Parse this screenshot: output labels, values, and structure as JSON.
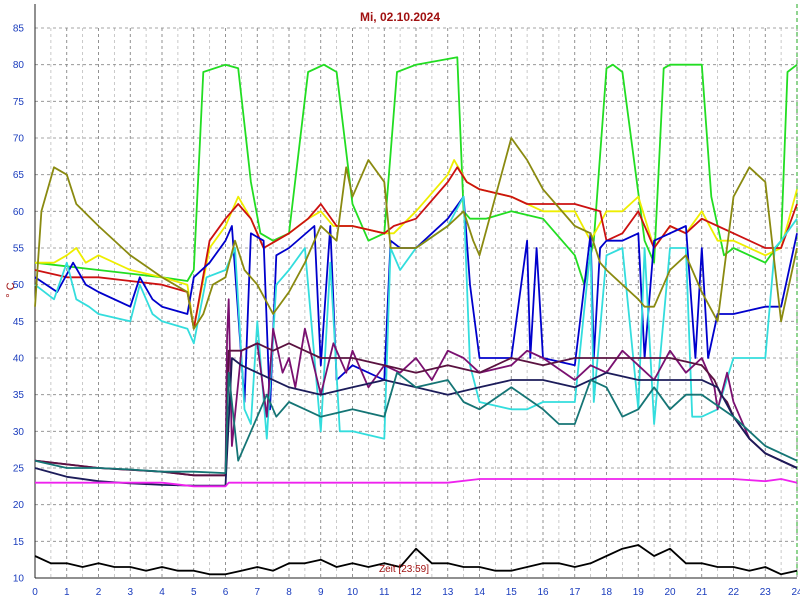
{
  "chart_data": {
    "type": "line",
    "title": "Mi, 02.10.2024",
    "ylabel": "° C",
    "time_note": "Zeit [23:59]",
    "xlim": [
      0,
      24
    ],
    "ylim": [
      10,
      85
    ],
    "x_ticks": [
      "0",
      "1",
      "2",
      "3",
      "4",
      "5",
      "6",
      "7",
      "8",
      "9",
      "10",
      "11",
      "12",
      "13",
      "14",
      "15",
      "16",
      "17",
      "18",
      "19",
      "20",
      "21",
      "22",
      "23",
      "24"
    ],
    "y_ticks": [
      "10",
      "15",
      "20",
      "25",
      "30",
      "35",
      "40",
      "45",
      "50",
      "55",
      "60",
      "65",
      "70",
      "75",
      "80",
      "85"
    ],
    "grid": true,
    "series": [
      {
        "color": "#22dd22",
        "x": [
          0,
          2,
          4,
          4.8,
          5,
          5.3,
          6,
          6.4,
          6.8,
          7.1,
          7.5,
          8,
          8.6,
          9.1,
          9.5,
          10,
          10.5,
          11,
          11.4,
          12,
          13.3,
          13.5,
          13.7,
          14.2,
          15,
          16,
          17,
          17.3,
          17.6,
          18,
          18.2,
          18.5,
          19.2,
          19.5,
          19.8,
          20,
          21,
          21.3,
          21.7,
          22,
          22.5,
          23,
          23.5,
          23.7,
          24
        ],
        "y": [
          53,
          52,
          51,
          50.5,
          52,
          79,
          80,
          79.5,
          64,
          57,
          56,
          57,
          79,
          80,
          79,
          61,
          56,
          57,
          79,
          80,
          81,
          60,
          59,
          59,
          60,
          59,
          54,
          50,
          56,
          79.5,
          80,
          79,
          56,
          53,
          79.5,
          80,
          80,
          62,
          54,
          55,
          54,
          53,
          56,
          79,
          80
        ]
      },
      {
        "color": "#eeee00",
        "x": [
          0,
          0.6,
          1,
          1.3,
          1.6,
          2,
          3,
          4,
          4.8,
          5,
          5.5,
          6,
          6.4,
          6.8,
          7.2,
          7.6,
          8,
          8.6,
          9,
          9.4,
          10,
          11,
          11.3,
          12,
          13,
          13.2,
          13.6,
          14,
          15,
          16,
          17,
          17.5,
          18,
          18.5,
          19,
          19.5,
          20,
          20.5,
          21,
          21.5,
          22,
          23,
          23.5,
          24
        ],
        "y": [
          53,
          53,
          54,
          55,
          53,
          54,
          52,
          51,
          50,
          44,
          55,
          58,
          62,
          59,
          55,
          56,
          57,
          59,
          60,
          58,
          58,
          57,
          57,
          60,
          65,
          67,
          64,
          63,
          62,
          60,
          60,
          56,
          60,
          60,
          62,
          55,
          58,
          57,
          60,
          56,
          56,
          54,
          55,
          63
        ]
      },
      {
        "color": "#cc1111",
        "x": [
          0,
          1,
          2,
          3,
          4,
          4.8,
          5,
          5.5,
          6,
          6.4,
          6.8,
          7.2,
          7.6,
          8,
          8.6,
          9,
          9.5,
          10,
          11,
          11.3,
          12,
          13,
          13.3,
          13.6,
          14,
          15,
          15.5,
          16,
          17,
          17.8,
          18,
          18.5,
          19,
          19.5,
          20,
          20.5,
          21,
          21.5,
          22,
          23,
          23.5,
          24
        ],
        "y": [
          52,
          51,
          51,
          50.5,
          50,
          49,
          44,
          56,
          59,
          61,
          59,
          55,
          56,
          57,
          59,
          61,
          58,
          58,
          57,
          58,
          59,
          64,
          66,
          64,
          63,
          62,
          61,
          61,
          61,
          60,
          56,
          57,
          60,
          55,
          58,
          57,
          59,
          58,
          57,
          55,
          55,
          61
        ]
      },
      {
        "color": "#0000cc",
        "x": [
          0,
          0.7,
          1.2,
          1.6,
          2,
          3,
          3.3,
          3.7,
          4,
          4.8,
          5,
          5.5,
          6,
          6.2,
          6.6,
          6.8,
          7.2,
          7.4,
          7.6,
          8,
          8.8,
          9,
          9.3,
          9.5,
          10,
          11,
          11.2,
          11.5,
          12,
          13,
          13.5,
          13.7,
          14,
          15,
          15.5,
          15.6,
          15.8,
          16,
          17,
          17.5,
          17.6,
          17.8,
          18,
          18.5,
          19,
          19.2,
          19.5,
          20,
          20.5,
          20.8,
          21,
          21.2,
          21.5,
          22,
          23,
          23.5,
          24
        ],
        "y": [
          51,
          49,
          53,
          50,
          49,
          47,
          51,
          48,
          47,
          46,
          51,
          53,
          56,
          58,
          34,
          57,
          56,
          33,
          54,
          55,
          58,
          39,
          58,
          37,
          39,
          37,
          56,
          55,
          55,
          59,
          62,
          50,
          40,
          40,
          56,
          40,
          55,
          40,
          39,
          57,
          40,
          55,
          56,
          56,
          57,
          40,
          56,
          57,
          58,
          40,
          55,
          40,
          46,
          46,
          47,
          47,
          57
        ]
      },
      {
        "color": "#33dddd",
        "x": [
          0,
          0.6,
          1,
          1.3,
          1.7,
          2,
          3,
          3.3,
          3.7,
          4,
          4.8,
          5,
          5.4,
          6,
          6.3,
          6.6,
          6.8,
          7,
          7.3,
          7.6,
          8,
          8.5,
          9,
          9.3,
          9.6,
          10,
          11,
          11.2,
          11.5,
          12,
          13,
          13.5,
          13.7,
          14,
          15,
          15.5,
          16,
          17,
          17.5,
          17.6,
          18,
          18.5,
          19,
          19.2,
          19.5,
          20,
          20.5,
          20.7,
          21,
          21.5,
          22,
          22.5,
          23,
          23.3,
          23.5,
          24
        ],
        "y": [
          50,
          48,
          53,
          48,
          47,
          46,
          45,
          50,
          46,
          45,
          44,
          42,
          51,
          52,
          55,
          33,
          31,
          45,
          29,
          50,
          52,
          55,
          30,
          53,
          30,
          30,
          29,
          55,
          52,
          55,
          58,
          62,
          39,
          34,
          33,
          33,
          34,
          34,
          55,
          34,
          54,
          55,
          33,
          55,
          31,
          55,
          55,
          32,
          32,
          33,
          40,
          40,
          40,
          55,
          56,
          59
        ]
      },
      {
        "color": "#8a8a10",
        "x": [
          0,
          0.2,
          0.6,
          1,
          1.3,
          2,
          3,
          4,
          4.8,
          5,
          5.3,
          5.6,
          6,
          6.3,
          6.6,
          7,
          7.5,
          8,
          8.5,
          9,
          9.5,
          9.8,
          10,
          10.5,
          11,
          11.2,
          12,
          13,
          13.5,
          13.8,
          14,
          14.5,
          15,
          15.5,
          16,
          17,
          17.5,
          17.8,
          18,
          18.5,
          19,
          19.2,
          19.5,
          20,
          20.5,
          21,
          21.5,
          22,
          22.5,
          23,
          23.5,
          24
        ],
        "y": [
          47,
          60,
          66,
          65,
          61,
          58,
          54,
          51,
          49,
          44,
          46,
          50,
          51,
          56,
          52,
          50,
          46,
          49,
          53,
          58,
          56,
          66,
          62,
          67,
          64,
          55,
          55,
          58,
          60,
          56,
          54,
          62,
          70,
          67,
          63,
          58,
          57,
          53,
          52,
          50,
          48,
          47,
          47,
          52,
          54,
          49,
          45,
          62,
          66,
          64,
          45,
          55
        ]
      },
      {
        "color": "#7a1070",
        "x": [
          0,
          2,
          4,
          5,
          5.5,
          6,
          6.05,
          6.1,
          6.2,
          6.5,
          7,
          7.3,
          7.5,
          7.8,
          8,
          8.2,
          8.5,
          9,
          9.4,
          9.8,
          10,
          10.5,
          11,
          11.5,
          12,
          12.5,
          13,
          13.5,
          14,
          15,
          15.5,
          16,
          17,
          17.5,
          18,
          18.5,
          19,
          19.5,
          20,
          20.5,
          21,
          21.4,
          21.5,
          21.8,
          22,
          22.5,
          23,
          23.5,
          24
        ],
        "y": [
          26,
          25,
          24.5,
          24,
          24,
          24,
          43,
          48,
          28,
          41,
          42,
          32,
          44,
          38,
          40,
          36,
          44,
          35,
          42,
          38,
          41,
          36,
          39,
          38,
          40,
          37,
          41,
          40,
          38,
          39,
          41,
          40,
          37,
          39,
          38,
          41,
          39,
          37,
          41,
          38,
          40,
          36,
          33,
          38,
          34,
          29,
          27,
          26,
          25
        ]
      },
      {
        "color": "#5a1240",
        "x": [
          0,
          2,
          4,
          5,
          6,
          6.1,
          6.5,
          7,
          7.5,
          8,
          8.5,
          9,
          10,
          11,
          12,
          13,
          14,
          15,
          16,
          17,
          18,
          19,
          20,
          21,
          21.4,
          21.6,
          21.8,
          22,
          22.5,
          23,
          24
        ],
        "y": [
          26,
          25,
          24.5,
          24,
          24,
          41,
          41,
          42,
          41,
          42,
          41,
          40,
          40,
          39,
          38,
          39,
          38,
          40,
          39,
          40,
          40,
          40,
          40,
          39,
          37,
          35,
          34,
          32,
          29,
          27,
          25
        ]
      },
      {
        "color": "#1c1c5a",
        "x": [
          0,
          1,
          2,
          3,
          4,
          5,
          6,
          6.2,
          6.5,
          7,
          8,
          9,
          10,
          11,
          12,
          13,
          14,
          15,
          16,
          17,
          18,
          19,
          20,
          21,
          21.5,
          22,
          22.5,
          23,
          24
        ],
        "y": [
          25,
          23.8,
          23.2,
          22.9,
          22.7,
          22.6,
          22.6,
          40,
          39,
          38,
          36,
          35,
          36,
          37,
          36,
          35,
          36,
          37,
          37,
          36,
          38,
          37,
          37,
          37,
          36,
          32,
          29,
          27,
          25
        ]
      },
      {
        "color": "#157575",
        "x": [
          0,
          1,
          2,
          3,
          4,
          5,
          6,
          6.1,
          6.4,
          7,
          7.3,
          7.6,
          8,
          8.5,
          9,
          10,
          11,
          11.4,
          12,
          13,
          13.5,
          14,
          15,
          16,
          16.5,
          17,
          17.5,
          18,
          18.5,
          19,
          19.5,
          20,
          20.5,
          21,
          22,
          23,
          24
        ],
        "y": [
          26,
          25,
          25,
          24.8,
          24.5,
          24.5,
          24.3,
          38,
          26,
          32,
          35,
          32,
          34,
          33,
          32,
          33,
          32,
          38,
          36,
          37,
          34,
          33,
          36,
          33,
          31,
          31,
          37,
          36,
          32,
          33,
          36,
          33,
          35,
          35,
          32,
          28,
          26
        ]
      },
      {
        "color": "#ee22ee",
        "x": [
          0,
          1,
          2,
          3,
          4,
          5,
          6,
          6.1,
          7,
          8,
          9,
          10,
          11,
          12,
          13,
          14,
          15,
          16,
          17,
          18,
          19,
          20,
          21,
          22,
          23,
          23.5,
          24
        ],
        "y": [
          23,
          23,
          23,
          23,
          23,
          22.5,
          22.5,
          23,
          23,
          23,
          23,
          23,
          23,
          23,
          23,
          23.5,
          23.5,
          23.5,
          23.5,
          23.5,
          23.5,
          23.5,
          23.5,
          23.5,
          23.2,
          23.5,
          23
        ]
      },
      {
        "color": "#000000",
        "x": [
          0,
          0.5,
          1,
          1.5,
          2,
          2.5,
          3,
          3.5,
          4,
          4.5,
          5,
          5.5,
          6,
          6.5,
          7,
          7.5,
          8,
          8.5,
          9,
          9.5,
          10,
          10.5,
          11,
          11.5,
          12,
          12.5,
          13,
          13.5,
          14,
          14.5,
          15,
          15.5,
          16,
          16.5,
          17,
          17.5,
          18,
          18.5,
          19,
          19.5,
          20,
          20.5,
          21,
          21.5,
          22,
          22.5,
          23,
          23.5,
          24
        ],
        "y": [
          13,
          12,
          12,
          11.5,
          12,
          11.5,
          11.5,
          11,
          11.5,
          11,
          11,
          10.5,
          10.5,
          11,
          11.5,
          11,
          12,
          12,
          12.5,
          11.5,
          12,
          11.5,
          12,
          11.5,
          14,
          12,
          12,
          11.5,
          11.5,
          11,
          11,
          11.5,
          12,
          12,
          11.5,
          12,
          13,
          14,
          14.5,
          13,
          14,
          12,
          12,
          11.5,
          11.5,
          11,
          11.5,
          10.5,
          11
        ]
      }
    ]
  }
}
